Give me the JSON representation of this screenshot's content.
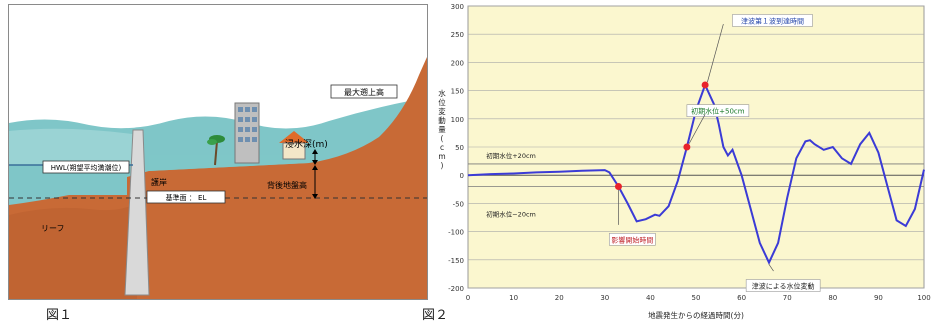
{
  "figure1": {
    "caption": "図１",
    "labels": {
      "max_runup": "最大遡上高",
      "inundation_depth": "浸水深(m)",
      "hwl": "HWL(朔望平均満潮位)",
      "seawall": "護岸",
      "ground_height": "背後地盤高",
      "datum": "基準面 ： EL",
      "reef": "リーフ"
    }
  },
  "figure2": {
    "caption": "図２",
    "chart_data": {
      "type": "line",
      "xlabel": "地震発生からの経過時間(分)",
      "ylabel": "水位変動量(cm)",
      "xlim": [
        0,
        100
      ],
      "ylim": [
        -200,
        300
      ],
      "xticks": [
        0,
        10,
        20,
        30,
        40,
        50,
        60,
        70,
        80,
        90,
        100
      ],
      "yticks": [
        300,
        250,
        200,
        150,
        100,
        50,
        0,
        -50,
        -100,
        -150,
        -200
      ],
      "grid": true,
      "reference_lines": [
        {
          "y": 20,
          "label": "初期水位+20cm"
        },
        {
          "y": -20,
          "label": "初期水位−20cm"
        }
      ],
      "series": [
        {
          "x": [
            0,
            5,
            10,
            15,
            20,
            25,
            30,
            31,
            33,
            35,
            37,
            39,
            41,
            42,
            44,
            46,
            48,
            50,
            52,
            54,
            55,
            56,
            57,
            58,
            60,
            62,
            64,
            66,
            68,
            70,
            72,
            74,
            75,
            76,
            78,
            80,
            82,
            84,
            86,
            88,
            90,
            92,
            94,
            96,
            98,
            100
          ],
          "y": [
            0,
            2,
            3,
            5,
            6,
            8,
            9,
            5,
            -20,
            -50,
            -82,
            -78,
            -70,
            -72,
            -55,
            -10,
            50,
            115,
            160,
            125,
            90,
            50,
            35,
            45,
            0,
            -60,
            -120,
            -155,
            -120,
            -40,
            30,
            60,
            62,
            55,
            45,
            50,
            30,
            20,
            55,
            75,
            40,
            -20,
            -80,
            -90,
            -60,
            10
          ]
        }
      ],
      "annotations": {
        "max_wave": "津波第１波到達時間",
        "initial_level": "初期水位+50cm",
        "arrival_start": "影響開始時間",
        "variation": "津波による水位変動"
      },
      "markers": [
        {
          "x": 33,
          "y": -20
        },
        {
          "x": 48,
          "y": 50
        },
        {
          "x": 52,
          "y": 160
        }
      ]
    }
  }
}
